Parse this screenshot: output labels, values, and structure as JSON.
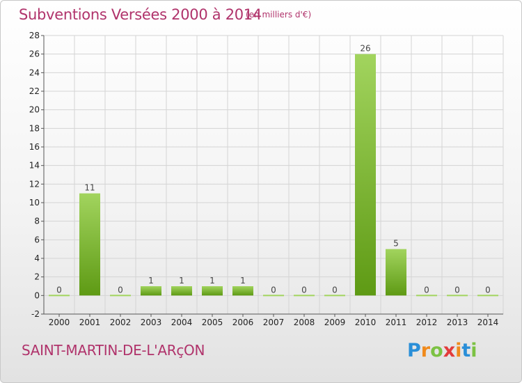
{
  "title": "Subventions Versées 2000 à 2014",
  "unit_note": "(en milliers d'€)",
  "commune": "SAINT-MARTIN-DE-L'ARçON",
  "brand": {
    "letters": [
      {
        "char": "P",
        "color": "#2a8fd8"
      },
      {
        "char": "r",
        "color": "#f08a1c"
      },
      {
        "char": "o",
        "color": "#7cc243"
      },
      {
        "char": "x",
        "color": "#e23b3b"
      },
      {
        "char": "i",
        "color": "#f08a1c"
      },
      {
        "char": "t",
        "color": "#2a8fd8"
      },
      {
        "char": "i",
        "color": "#7cc243"
      }
    ]
  },
  "colors": {
    "bar_light": "#a2d45e",
    "bar_dark": "#5e9a14",
    "title": "#b0336b",
    "grid": "#d4d4d4"
  },
  "chart_data": {
    "type": "bar",
    "categories": [
      "2000",
      "2001",
      "2002",
      "2003",
      "2004",
      "2005",
      "2006",
      "2007",
      "2008",
      "2009",
      "2010",
      "2011",
      "2012",
      "2013",
      "2014"
    ],
    "values": [
      0,
      11,
      0,
      1,
      1,
      1,
      1,
      0,
      0,
      0,
      26,
      5,
      0,
      0,
      0
    ],
    "data_labels": [
      "0",
      "11",
      "0",
      "1",
      "1",
      "1",
      "1",
      "0",
      "0",
      "0",
      "26",
      "5",
      "0",
      "0",
      "0"
    ],
    "y_ticks": [
      -2,
      0,
      2,
      4,
      6,
      8,
      10,
      12,
      14,
      16,
      18,
      20,
      22,
      24,
      26,
      28
    ],
    "ylim": [
      -2,
      28
    ],
    "grid": true,
    "legend": "none"
  }
}
